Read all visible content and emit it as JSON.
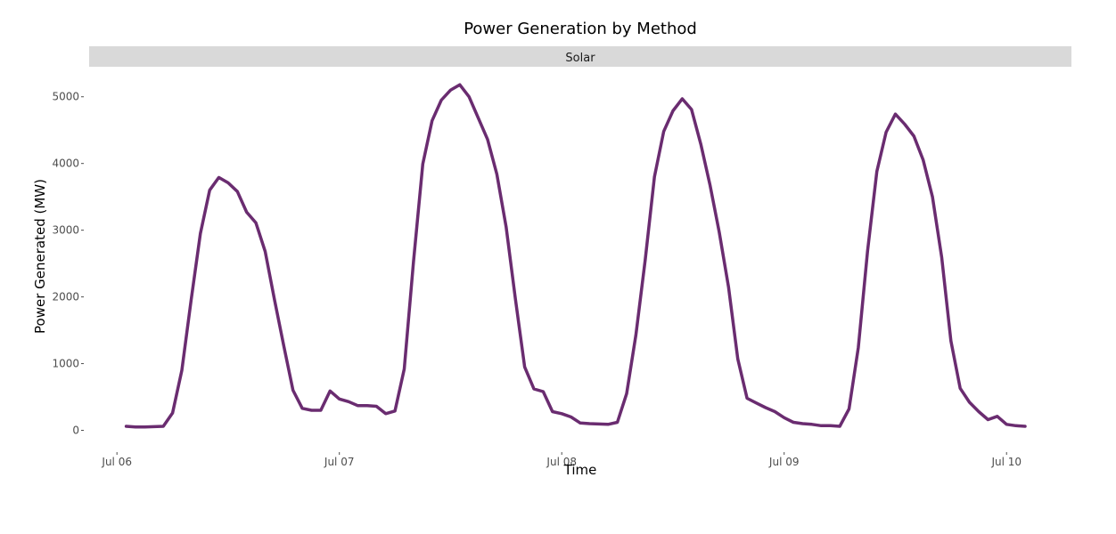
{
  "chart_data": {
    "type": "line",
    "title": "Power Generation by Method",
    "facet": "Solar",
    "xlabel": "Time",
    "ylabel": "Power Generated (MW)",
    "x_ticks": [
      "Jul 06",
      "Jul 07",
      "Jul 08",
      "Jul 09",
      "Jul 10"
    ],
    "y_ticks": [
      "0",
      "1000",
      "2000",
      "3000",
      "4000",
      "5000"
    ],
    "ylim": [
      -300,
      5450
    ],
    "xlim": [
      "2021-07-05 21:00",
      "2021-07-10 07:00"
    ],
    "line_color": "#6a2c70",
    "strip_color": "#d9d9d9",
    "grid": false,
    "series": [
      {
        "x": [
          "2021-07-06 01:00",
          "2021-07-06 02:00",
          "2021-07-06 03:00",
          "2021-07-06 04:00",
          "2021-07-06 05:00",
          "2021-07-06 06:00",
          "2021-07-06 07:00",
          "2021-07-06 08:00",
          "2021-07-06 09:00",
          "2021-07-06 10:00",
          "2021-07-06 11:00",
          "2021-07-06 12:00",
          "2021-07-06 13:00",
          "2021-07-06 14:00",
          "2021-07-06 15:00",
          "2021-07-06 16:00",
          "2021-07-06 17:00",
          "2021-07-06 18:00",
          "2021-07-06 19:00",
          "2021-07-06 20:00",
          "2021-07-06 21:00",
          "2021-07-06 22:00",
          "2021-07-06 23:00",
          "2021-07-07 00:00",
          "2021-07-07 01:00",
          "2021-07-07 02:00",
          "2021-07-07 03:00",
          "2021-07-07 04:00",
          "2021-07-07 05:00",
          "2021-07-07 06:00",
          "2021-07-07 07:00",
          "2021-07-07 08:00",
          "2021-07-07 09:00",
          "2021-07-07 10:00",
          "2021-07-07 11:00",
          "2021-07-07 12:00",
          "2021-07-07 13:00",
          "2021-07-07 14:00",
          "2021-07-07 15:00",
          "2021-07-07 16:00",
          "2021-07-07 17:00",
          "2021-07-07 18:00",
          "2021-07-07 19:00",
          "2021-07-07 20:00",
          "2021-07-07 21:00",
          "2021-07-07 22:00",
          "2021-07-07 23:00",
          "2021-07-08 00:00",
          "2021-07-08 01:00",
          "2021-07-08 02:00",
          "2021-07-08 03:00",
          "2021-07-08 04:00",
          "2021-07-08 05:00",
          "2021-07-08 06:00",
          "2021-07-08 07:00",
          "2021-07-08 08:00",
          "2021-07-08 09:00",
          "2021-07-08 10:00",
          "2021-07-08 11:00",
          "2021-07-08 12:00",
          "2021-07-08 13:00",
          "2021-07-08 14:00",
          "2021-07-08 15:00",
          "2021-07-08 16:00",
          "2021-07-08 17:00",
          "2021-07-08 18:00",
          "2021-07-08 19:00",
          "2021-07-08 20:00",
          "2021-07-08 21:00",
          "2021-07-08 22:00",
          "2021-07-08 23:00",
          "2021-07-09 00:00",
          "2021-07-09 01:00",
          "2021-07-09 02:00",
          "2021-07-09 03:00",
          "2021-07-09 04:00",
          "2021-07-09 05:00",
          "2021-07-09 06:00",
          "2021-07-09 07:00",
          "2021-07-09 08:00",
          "2021-07-09 09:00",
          "2021-07-09 10:00",
          "2021-07-09 11:00",
          "2021-07-09 12:00",
          "2021-07-09 13:00",
          "2021-07-09 14:00",
          "2021-07-09 15:00",
          "2021-07-09 16:00",
          "2021-07-09 17:00",
          "2021-07-09 18:00",
          "2021-07-09 19:00",
          "2021-07-09 20:00",
          "2021-07-09 21:00",
          "2021-07-09 22:00",
          "2021-07-09 23:00",
          "2021-07-10 00:00",
          "2021-07-10 01:00",
          "2021-07-10 02:00"
        ],
        "values": [
          60,
          50,
          50,
          55,
          60,
          260,
          900,
          1950,
          2950,
          3600,
          3790,
          3710,
          3580,
          3270,
          3110,
          2680,
          1960,
          1270,
          600,
          330,
          300,
          300,
          590,
          470,
          430,
          370,
          370,
          360,
          250,
          290,
          920,
          2530,
          3990,
          4640,
          4950,
          5100,
          5180,
          5000,
          4680,
          4360,
          3840,
          3050,
          1970,
          950,
          620,
          580,
          280,
          250,
          200,
          110,
          100,
          95,
          90,
          120,
          550,
          1430,
          2550,
          3800,
          4480,
          4790,
          4970,
          4810,
          4290,
          3680,
          2970,
          2150,
          1070,
          480,
          410,
          340,
          280,
          190,
          120,
          100,
          90,
          70,
          70,
          60,
          320,
          1240,
          2690,
          3880,
          4470,
          4740,
          4590,
          4410,
          4050,
          3500,
          2590,
          1340,
          630,
          420,
          280,
          160,
          210,
          90,
          70,
          60
        ]
      }
    ]
  }
}
